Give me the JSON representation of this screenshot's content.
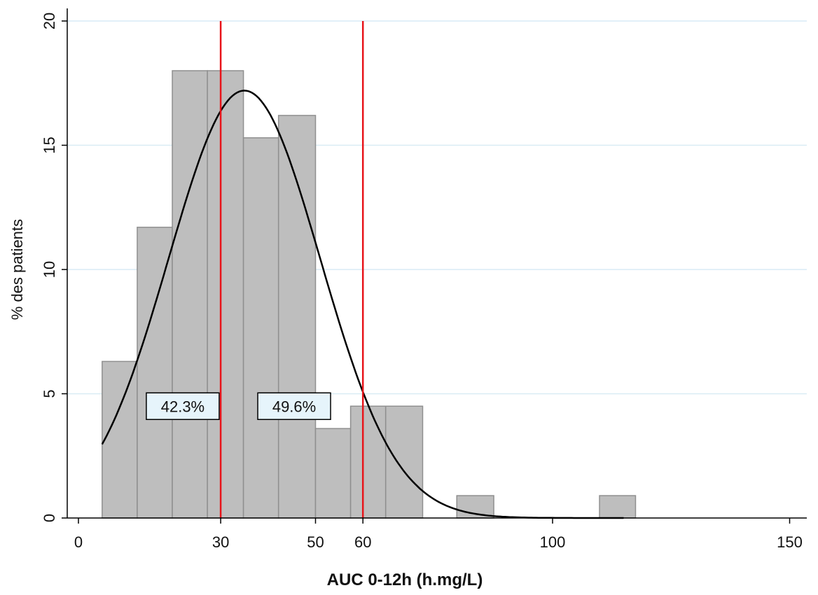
{
  "colors": {
    "bar_fill": "#bebebe",
    "bar_stroke": "#8f8f8f",
    "gridline": "#d9ecf5",
    "threshold": "#e8141a",
    "curve": "#000000",
    "annotation_fill": "#e6f4fb",
    "axis": "#000000"
  },
  "chart_data": {
    "type": "bar",
    "title": "",
    "xlabel": "AUC 0-12h (h.mg/L)",
    "ylabel": "% des patients",
    "xlim": [
      -5,
      152
    ],
    "ylim": [
      0,
      20.5
    ],
    "x_ticks": [
      0,
      30,
      50,
      60,
      100,
      150
    ],
    "y_ticks": [
      0,
      5,
      10,
      15,
      20
    ],
    "grid": true,
    "bins": [
      {
        "x0": 5,
        "x1": 12.4,
        "value": 6.3
      },
      {
        "x0": 12.4,
        "x1": 19.8,
        "value": 11.7
      },
      {
        "x0": 19.8,
        "x1": 27.2,
        "value": 18.0
      },
      {
        "x0": 27.2,
        "x1": 34.8,
        "value": 18.0
      },
      {
        "x0": 34.8,
        "x1": 42.2,
        "value": 15.3
      },
      {
        "x0": 42.2,
        "x1": 50,
        "value": 16.2
      },
      {
        "x0": 50,
        "x1": 57.4,
        "value": 3.6
      },
      {
        "x0": 57.4,
        "x1": 64.8,
        "value": 4.5
      },
      {
        "x0": 64.8,
        "x1": 72.6,
        "value": 4.5
      },
      {
        "x0": 79.8,
        "x1": 87.6,
        "value": 0.9
      },
      {
        "x0": 109.9,
        "x1": 117.5,
        "value": 0.9
      }
    ],
    "normal_curve": {
      "mean": 35,
      "sd": 16,
      "peak": 17.2,
      "x_start": 5,
      "x_end": 115
    },
    "threshold_lines": [
      30,
      60
    ],
    "annotations": [
      {
        "text": "42.3%",
        "x": 22,
        "y": 4.5
      },
      {
        "text": "49.6%",
        "x": 45.5,
        "y": 4.5
      }
    ]
  }
}
